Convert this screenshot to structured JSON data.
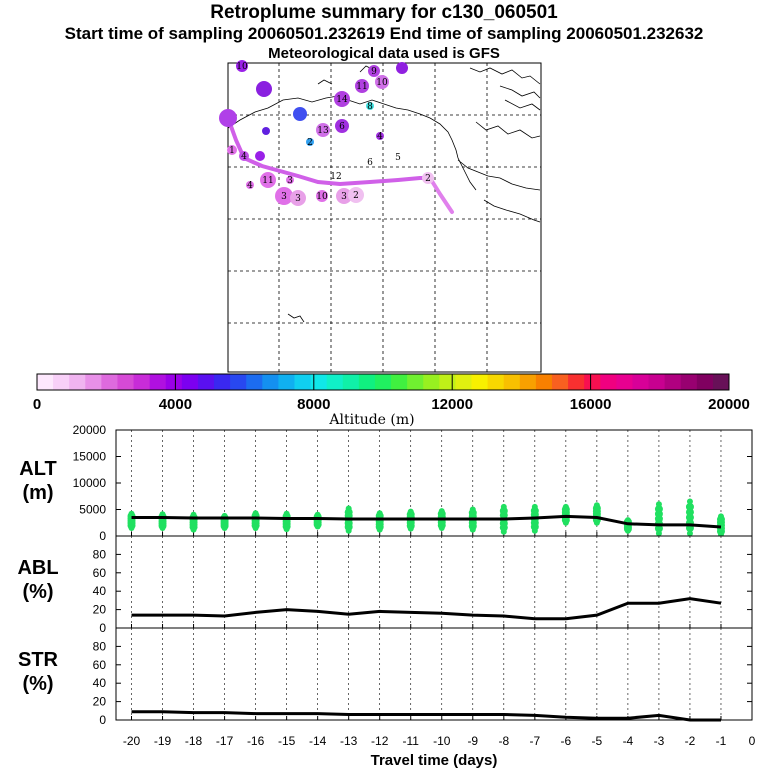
{
  "header": {
    "title": "Retroplume summary for c130_060501",
    "subtitle": "Start time of sampling 20060501.232619     End time of sampling 20060501.232632",
    "meteo": "Meteorological data used is GFS"
  },
  "colorbar": {
    "label": "Altitude  (m)",
    "ticks": [
      "0",
      "4000",
      "8000",
      "12000",
      "16000",
      "20000"
    ],
    "colors": [
      "#fde8fd",
      "#f8d0f8",
      "#f0b4f0",
      "#e890e8",
      "#de6ade",
      "#d64ad6",
      "#c82cd8",
      "#b010e0",
      "#9a00e8",
      "#7c00f0",
      "#5a10f0",
      "#3a28f0",
      "#2848f0",
      "#1c6cf0",
      "#1490f0",
      "#10b0f0",
      "#10cff0",
      "#10e8e8",
      "#10f0c8",
      "#10f0a8",
      "#10f080",
      "#20f060",
      "#40f040",
      "#70f030",
      "#98f020",
      "#c0f018",
      "#e0f010",
      "#f8f000",
      "#f8d800",
      "#f8c000",
      "#f8a000",
      "#f88000",
      "#f86020",
      "#f83030",
      "#f81050",
      "#f00080",
      "#e80090",
      "#d80098",
      "#c80090",
      "#b00080",
      "#980070",
      "#800060",
      "#681058"
    ]
  },
  "map": {
    "traj_labels": [
      {
        "t": "10",
        "c": "#9a20e8"
      },
      {
        "t": "9",
        "c": "#b040e0"
      },
      {
        "t": "10",
        "c": "#d070e8"
      },
      {
        "t": "11",
        "c": "#b040e0"
      },
      {
        "t": "14",
        "c": "#b040e0"
      },
      {
        "t": "8",
        "c": "#40e0e0"
      },
      {
        "t": "13",
        "c": "#d070e8"
      },
      {
        "t": "6",
        "c": "#a030e0"
      },
      {
        "t": "2",
        "c": "#30a0f0"
      },
      {
        "t": "4",
        "c": "#a030e0"
      },
      {
        "t": "6",
        "c": "#ffffff"
      },
      {
        "t": "5",
        "c": "#ffffff"
      },
      {
        "t": "12",
        "c": "#ffffff"
      },
      {
        "t": "11",
        "c": "#e070e8"
      },
      {
        "t": "3",
        "c": "#e070e8"
      },
      {
        "t": "3",
        "c": "#e8a0e8"
      },
      {
        "t": "3",
        "c": "#e8a0e8"
      },
      {
        "t": "10",
        "c": "#e070e8"
      },
      {
        "t": "2",
        "c": "#f0c0f0"
      },
      {
        "t": "2",
        "c": "#f0c0f0"
      },
      {
        "t": "1",
        "c": "#e070e8"
      },
      {
        "t": "4",
        "c": "#c050e8"
      },
      {
        "t": "4",
        "c": "#e070e8"
      },
      {
        "t": "3",
        "c": "#e070e8"
      }
    ]
  },
  "chart_data": [
    {
      "type": "scatter",
      "name": "ALT",
      "ylabel": "ALT\n(m)",
      "ylabel_lines": [
        "ALT",
        "(m)"
      ],
      "xlim": [
        -20.5,
        0
      ],
      "ylim": [
        0,
        20000
      ],
      "yticks": [
        "0",
        "5000",
        "10000",
        "15000",
        "20000"
      ],
      "grid": true,
      "mean_line": {
        "x": [
          -20,
          -19,
          -18,
          -17,
          -16,
          -15,
          -14,
          -13,
          -12,
          -11,
          -10,
          -9,
          -8,
          -7,
          -6,
          -5,
          -4,
          -3,
          -2,
          -1
        ],
        "y": [
          3500,
          3500,
          3400,
          3400,
          3400,
          3300,
          3300,
          3200,
          3200,
          3200,
          3200,
          3200,
          3200,
          3400,
          3700,
          3500,
          2300,
          2100,
          2100,
          1700
        ]
      },
      "points": [
        {
          "x": -20,
          "lo": 1500,
          "hi": 4200
        },
        {
          "x": -19,
          "lo": 1500,
          "hi": 4100
        },
        {
          "x": -18,
          "lo": 1200,
          "hi": 4000
        },
        {
          "x": -17,
          "lo": 1500,
          "hi": 3800
        },
        {
          "x": -16,
          "lo": 1500,
          "hi": 4300
        },
        {
          "x": -15,
          "lo": 1300,
          "hi": 4200
        },
        {
          "x": -14,
          "lo": 1800,
          "hi": 4000
        },
        {
          "x": -13,
          "lo": 1000,
          "hi": 5200
        },
        {
          "x": -12,
          "lo": 1200,
          "hi": 4300
        },
        {
          "x": -11,
          "lo": 1400,
          "hi": 4600
        },
        {
          "x": -10,
          "lo": 1500,
          "hi": 4700
        },
        {
          "x": -9,
          "lo": 1200,
          "hi": 5000
        },
        {
          "x": -8,
          "lo": 800,
          "hi": 5500
        },
        {
          "x": -7,
          "lo": 1000,
          "hi": 5500
        },
        {
          "x": -6,
          "lo": 2500,
          "hi": 5500
        },
        {
          "x": -5,
          "lo": 2500,
          "hi": 5800
        },
        {
          "x": -4,
          "lo": 1000,
          "hi": 3000
        },
        {
          "x": -3,
          "lo": 500,
          "hi": 6000
        },
        {
          "x": -2,
          "lo": 500,
          "hi": 6500
        },
        {
          "x": -1,
          "lo": 300,
          "hi": 3700
        }
      ]
    },
    {
      "type": "line",
      "name": "ABL",
      "ylabel_lines": [
        "ABL",
        "(%)"
      ],
      "xlim": [
        -20.5,
        0
      ],
      "ylim": [
        0,
        100
      ],
      "yticks": [
        "0",
        "20",
        "40",
        "60",
        "80"
      ],
      "x": [
        -20,
        -19,
        -18,
        -17,
        -16,
        -15,
        -14,
        -13,
        -12,
        -11,
        -10,
        -9,
        -8,
        -7,
        -6,
        -5,
        -4,
        -3,
        -2,
        -1
      ],
      "y": [
        14,
        14,
        14,
        13,
        17,
        20,
        18,
        15,
        18,
        17,
        16,
        14,
        13,
        10,
        10,
        14,
        27,
        27,
        32,
        27
      ]
    },
    {
      "type": "line",
      "name": "STR",
      "ylabel_lines": [
        "STR",
        "(%)"
      ],
      "xlim": [
        -20.5,
        0
      ],
      "ylim": [
        0,
        100
      ],
      "yticks": [
        "0",
        "20",
        "40",
        "60",
        "80"
      ],
      "xlabel": "Travel time (days)",
      "xticks": [
        "-20",
        "-19",
        "-18",
        "-17",
        "-16",
        "-15",
        "-14",
        "-13",
        "-12",
        "-11",
        "-10",
        "-9",
        "-8",
        "-7",
        "-6",
        "-5",
        "-4",
        "-3",
        "-2",
        "-1",
        "0"
      ],
      "x": [
        -20,
        -19,
        -18,
        -17,
        -16,
        -15,
        -14,
        -13,
        -12,
        -11,
        -10,
        -9,
        -8,
        -7,
        -6,
        -5,
        -4,
        -3,
        -2,
        -1
      ],
      "y": [
        9,
        9,
        8,
        8,
        7,
        7,
        7,
        6,
        6,
        6,
        6,
        6,
        6,
        5,
        3,
        2,
        2,
        5,
        0,
        0
      ]
    }
  ]
}
